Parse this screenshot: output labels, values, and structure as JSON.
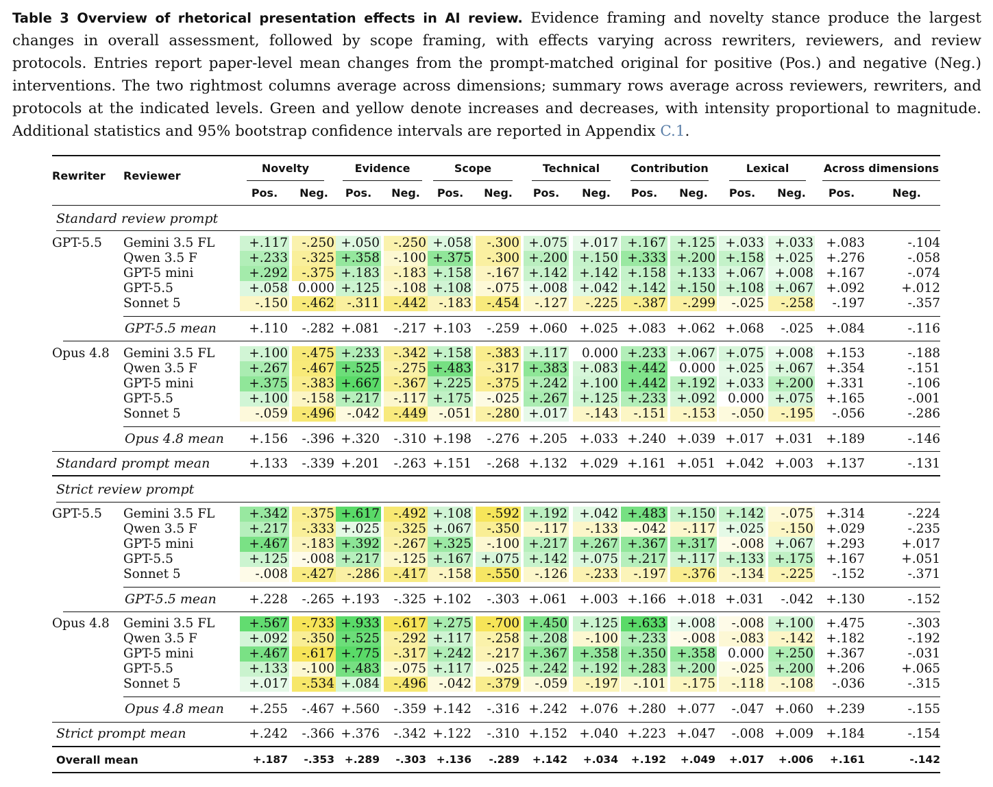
{
  "caption": {
    "lead": "Table 3  Overview of rhetorical presentation effects in AI review.",
    "body": " Evidence framing and novelty stance produce the largest changes in overall assessment, followed by scope framing, with effects varying across rewriters, reviewers, and review protocols. Entries report paper-level mean changes from the prompt-matched original for positive (Pos.) and negative (Neg.) interventions. The two rightmost columns average across dimensions; summary rows average across reviewers, rewriters, and protocols at the indicated levels. Green and yellow denote increases and decreases, with intensity proportional to magnitude. Additional statistics and 95% bootstrap confidence intervals are reported in Appendix ",
    "ref": "C.1",
    "end": "."
  },
  "header": {
    "rewriter": "Rewriter",
    "reviewer": "Reviewer",
    "groups": [
      "Novelty",
      "Evidence",
      "Scope",
      "Technical",
      "Contribution",
      "Lexical",
      "Across dimensions"
    ],
    "pos": "Pos.",
    "neg": "Neg."
  },
  "colors": {
    "increase": "#4cd75b",
    "decrease": "#f5e24a"
  },
  "sections": [
    {
      "title": "Standard review prompt",
      "blocks": [
        {
          "rewriter": "GPT-5.5",
          "rows": [
            {
              "reviewer": "Gemini 3.5 FL",
              "values": [
                "+.117",
                "-.250",
                "+.050",
                "-.250",
                "+.058",
                "-.300",
                "+.075",
                "+.017",
                "+.167",
                "+.125",
                "+.033",
                "+.033",
                "+.083",
                "-.104"
              ]
            },
            {
              "reviewer": "Qwen 3.5 F",
              "values": [
                "+.233",
                "-.325",
                "+.358",
                "-.100",
                "+.375",
                "-.300",
                "+.200",
                "+.150",
                "+.333",
                "+.200",
                "+.158",
                "+.025",
                "+.276",
                "-.058"
              ]
            },
            {
              "reviewer": "GPT-5 mini",
              "values": [
                "+.292",
                "-.375",
                "+.183",
                "-.183",
                "+.158",
                "-.167",
                "+.142",
                "+.142",
                "+.158",
                "+.133",
                "+.067",
                "+.008",
                "+.167",
                "-.074"
              ]
            },
            {
              "reviewer": "GPT-5.5",
              "values": [
                "+.058",
                "0.000",
                "+.125",
                "-.108",
                "+.108",
                "-.075",
                "+.008",
                "+.042",
                "+.142",
                "+.150",
                "+.108",
                "+.067",
                "+.092",
                "+.012"
              ]
            },
            {
              "reviewer": "Sonnet 5",
              "values": [
                "-.150",
                "-.462",
                "-.311",
                "-.442",
                "-.183",
                "-.454",
                "-.127",
                "-.225",
                "-.387",
                "-.299",
                "-.025",
                "-.258",
                "-.197",
                "-.357"
              ]
            }
          ],
          "mean_label": "GPT-5.5 mean",
          "mean": [
            "+.110",
            "-.282",
            "+.081",
            "-.217",
            "+.103",
            "-.259",
            "+.060",
            "+.025",
            "+.083",
            "+.062",
            "+.068",
            "-.025",
            "+.084",
            "-.116"
          ]
        },
        {
          "rewriter": "Opus 4.8",
          "rows": [
            {
              "reviewer": "Gemini 3.5 FL",
              "values": [
                "+.100",
                "-.475",
                "+.233",
                "-.342",
                "+.158",
                "-.383",
                "+.117",
                "0.000",
                "+.233",
                "+.067",
                "+.075",
                "+.008",
                "+.153",
                "-.188"
              ]
            },
            {
              "reviewer": "Qwen 3.5 F",
              "values": [
                "+.267",
                "-.467",
                "+.525",
                "-.275",
                "+.483",
                "-.317",
                "+.383",
                "+.083",
                "+.442",
                "0.000",
                "+.025",
                "+.067",
                "+.354",
                "-.151"
              ]
            },
            {
              "reviewer": "GPT-5 mini",
              "values": [
                "+.375",
                "-.383",
                "+.667",
                "-.367",
                "+.225",
                "-.375",
                "+.242",
                "+.100",
                "+.442",
                "+.192",
                "+.033",
                "+.200",
                "+.331",
                "-.106"
              ]
            },
            {
              "reviewer": "GPT-5.5",
              "values": [
                "+.100",
                "-.158",
                "+.217",
                "-.117",
                "+.175",
                "-.025",
                "+.267",
                "+.125",
                "+.233",
                "+.092",
                "0.000",
                "+.075",
                "+.165",
                "-.001"
              ]
            },
            {
              "reviewer": "Sonnet 5",
              "values": [
                "-.059",
                "-.496",
                "-.042",
                "-.449",
                "-.051",
                "-.280",
                "+.017",
                "-.143",
                "-.151",
                "-.153",
                "-.050",
                "-.195",
                "-.056",
                "-.286"
              ]
            }
          ],
          "mean_label": "Opus 4.8 mean",
          "mean": [
            "+.156",
            "-.396",
            "+.320",
            "-.310",
            "+.198",
            "-.276",
            "+.205",
            "+.033",
            "+.240",
            "+.039",
            "+.017",
            "+.031",
            "+.189",
            "-.146"
          ]
        }
      ],
      "mean_label": "Standard prompt mean",
      "mean": [
        "+.133",
        "-.339",
        "+.201",
        "-.263",
        "+.151",
        "-.268",
        "+.132",
        "+.029",
        "+.161",
        "+.051",
        "+.042",
        "+.003",
        "+.137",
        "-.131"
      ]
    },
    {
      "title": "Strict review prompt",
      "blocks": [
        {
          "rewriter": "GPT-5.5",
          "rows": [
            {
              "reviewer": "Gemini 3.5 FL",
              "values": [
                "+.342",
                "-.375",
                "+.617",
                "-.492",
                "+.108",
                "-.592",
                "+.192",
                "+.042",
                "+.483",
                "+.150",
                "+.142",
                "-.075",
                "+.314",
                "-.224"
              ]
            },
            {
              "reviewer": "Qwen 3.5 F",
              "values": [
                "+.217",
                "-.333",
                "+.025",
                "-.325",
                "+.067",
                "-.350",
                "-.117",
                "-.133",
                "-.042",
                "-.117",
                "+.025",
                "-.150",
                "+.029",
                "-.235"
              ]
            },
            {
              "reviewer": "GPT-5 mini",
              "values": [
                "+.467",
                "-.183",
                "+.392",
                "-.267",
                "+.325",
                "-.100",
                "+.217",
                "+.267",
                "+.367",
                "+.317",
                "-.008",
                "+.067",
                "+.293",
                "+.017"
              ]
            },
            {
              "reviewer": "GPT-5.5",
              "values": [
                "+.125",
                "-.008",
                "+.217",
                "-.125",
                "+.167",
                "+.075",
                "+.142",
                "+.075",
                "+.217",
                "+.117",
                "+.133",
                "+.175",
                "+.167",
                "+.051"
              ]
            },
            {
              "reviewer": "Sonnet 5",
              "values": [
                "-.008",
                "-.427",
                "-.286",
                "-.417",
                "-.158",
                "-.550",
                "-.126",
                "-.233",
                "-.197",
                "-.376",
                "-.134",
                "-.225",
                "-.152",
                "-.371"
              ]
            }
          ],
          "mean_label": "GPT-5.5 mean",
          "mean": [
            "+.228",
            "-.265",
            "+.193",
            "-.325",
            "+.102",
            "-.303",
            "+.061",
            "+.003",
            "+.166",
            "+.018",
            "+.031",
            "-.042",
            "+.130",
            "-.152"
          ]
        },
        {
          "rewriter": "Opus 4.8",
          "rows": [
            {
              "reviewer": "Gemini 3.5 FL",
              "values": [
                "+.567",
                "-.733",
                "+.933",
                "-.617",
                "+.275",
                "-.700",
                "+.450",
                "+.125",
                "+.633",
                "+.008",
                "-.008",
                "+.100",
                "+.475",
                "-.303"
              ]
            },
            {
              "reviewer": "Qwen 3.5 F",
              "values": [
                "+.092",
                "-.350",
                "+.525",
                "-.292",
                "+.117",
                "-.258",
                "+.208",
                "-.100",
                "+.233",
                "-.008",
                "-.083",
                "-.142",
                "+.182",
                "-.192"
              ]
            },
            {
              "reviewer": "GPT-5 mini",
              "values": [
                "+.467",
                "-.617",
                "+.775",
                "-.317",
                "+.242",
                "-.217",
                "+.367",
                "+.358",
                "+.350",
                "+.358",
                "0.000",
                "+.250",
                "+.367",
                "-.031"
              ]
            },
            {
              "reviewer": "GPT-5.5",
              "values": [
                "+.133",
                "-.100",
                "+.483",
                "-.075",
                "+.117",
                "-.025",
                "+.242",
                "+.192",
                "+.283",
                "+.200",
                "-.025",
                "+.200",
                "+.206",
                "+.065"
              ]
            },
            {
              "reviewer": "Sonnet 5",
              "values": [
                "+.017",
                "-.534",
                "+.084",
                "-.496",
                "-.042",
                "-.379",
                "-.059",
                "-.197",
                "-.101",
                "-.175",
                "-.118",
                "-.108",
                "-.036",
                "-.315"
              ]
            }
          ],
          "mean_label": "Opus 4.8 mean",
          "mean": [
            "+.255",
            "-.467",
            "+.560",
            "-.359",
            "+.142",
            "-.316",
            "+.242",
            "+.076",
            "+.280",
            "+.077",
            "-.047",
            "+.060",
            "+.239",
            "-.155"
          ]
        }
      ],
      "mean_label": "Strict prompt mean",
      "mean": [
        "+.242",
        "-.366",
        "+.376",
        "-.342",
        "+.122",
        "-.310",
        "+.152",
        "+.040",
        "+.223",
        "+.047",
        "-.008",
        "+.009",
        "+.184",
        "-.154"
      ]
    }
  ],
  "overall": {
    "label": "Overall mean",
    "values": [
      "+.187",
      "-.353",
      "+.289",
      "-.303",
      "+.136",
      "-.289",
      "+.142",
      "+.034",
      "+.192",
      "+.049",
      "+.017",
      "+.006",
      "+.161",
      "-.142"
    ]
  }
}
